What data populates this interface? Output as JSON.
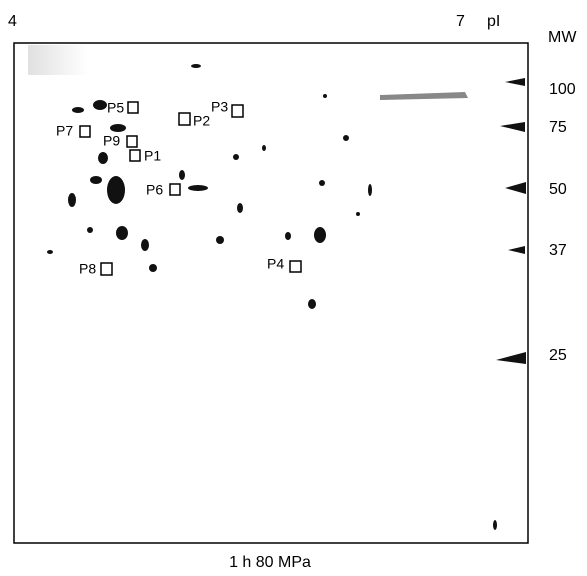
{
  "axis": {
    "pi_left": "4",
    "pi_right": "7",
    "pi_label": "pI",
    "mw_label": "MW"
  },
  "mw_markers": [
    "100",
    "75",
    "50",
    "37",
    "25"
  ],
  "spots": [
    "P1",
    "P2",
    "P3",
    "P4",
    "P5",
    "P6",
    "P7",
    "P8",
    "P9"
  ],
  "caption": "1 h 80 MPa"
}
